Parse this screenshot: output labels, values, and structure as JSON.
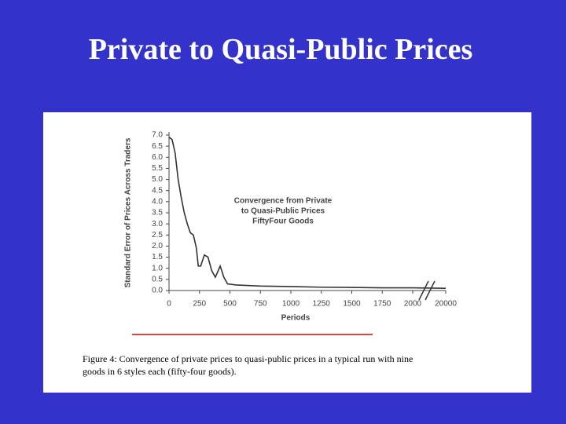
{
  "title": "Private to Quasi-Public Prices",
  "chart_data": {
    "type": "line",
    "annotation": [
      "Convergence from Private",
      "to Quasi-Public Prices",
      "FiftyFour Goods"
    ],
    "xlabel": "Periods",
    "ylabel": "Standard Error of Prices Across Traders",
    "x": [
      0,
      25,
      50,
      75,
      100,
      125,
      150,
      175,
      200,
      225,
      240,
      260,
      290,
      320,
      350,
      380,
      420,
      450,
      480,
      550,
      750,
      1000,
      1250,
      1500,
      1750,
      2000,
      20000
    ],
    "series": [
      {
        "color": "#333333",
        "values": [
          6.9,
          6.8,
          6.2,
          5.0,
          4.2,
          3.5,
          3.0,
          2.6,
          2.5,
          1.9,
          1.1,
          1.1,
          1.6,
          1.5,
          0.9,
          0.6,
          1.1,
          0.6,
          0.3,
          0.25,
          0.2,
          0.18,
          0.15,
          0.14,
          0.12,
          0.12,
          0.1
        ]
      }
    ],
    "xlim": [
      0,
      20000
    ],
    "xticks": [
      0,
      250,
      500,
      750,
      1000,
      1250,
      1500,
      1750,
      2000,
      20000
    ],
    "ylim": [
      0,
      7
    ],
    "yticks": [
      {
        "value": 0,
        "label": "0.0"
      },
      {
        "value": 0.5,
        "label": "0.5"
      },
      {
        "value": 1,
        "label": "1.0"
      },
      {
        "value": 1.5,
        "label": "1.5"
      },
      {
        "value": 2,
        "label": "2.0"
      },
      {
        "value": 2.5,
        "label": "2.5"
      },
      {
        "value": 3,
        "label": "3.0"
      },
      {
        "value": 3.5,
        "label": "3.5"
      },
      {
        "value": 4,
        "label": "4.0"
      },
      {
        "value": 4.5,
        "label": "4.5"
      },
      {
        "value": 5,
        "label": "5.0"
      },
      {
        "value": 5.5,
        "label": "5.5"
      },
      {
        "value": 6,
        "label": "6.0"
      },
      {
        "value": 6.5,
        "label": "6.5"
      },
      {
        "value": 7,
        "label": "7.0"
      }
    ],
    "caption": [
      "Figure 4: Convergence of private prices to quasi-public prices in a typical run with nine",
      "goods in 6 styles each (fifty-four goods)."
    ]
  }
}
